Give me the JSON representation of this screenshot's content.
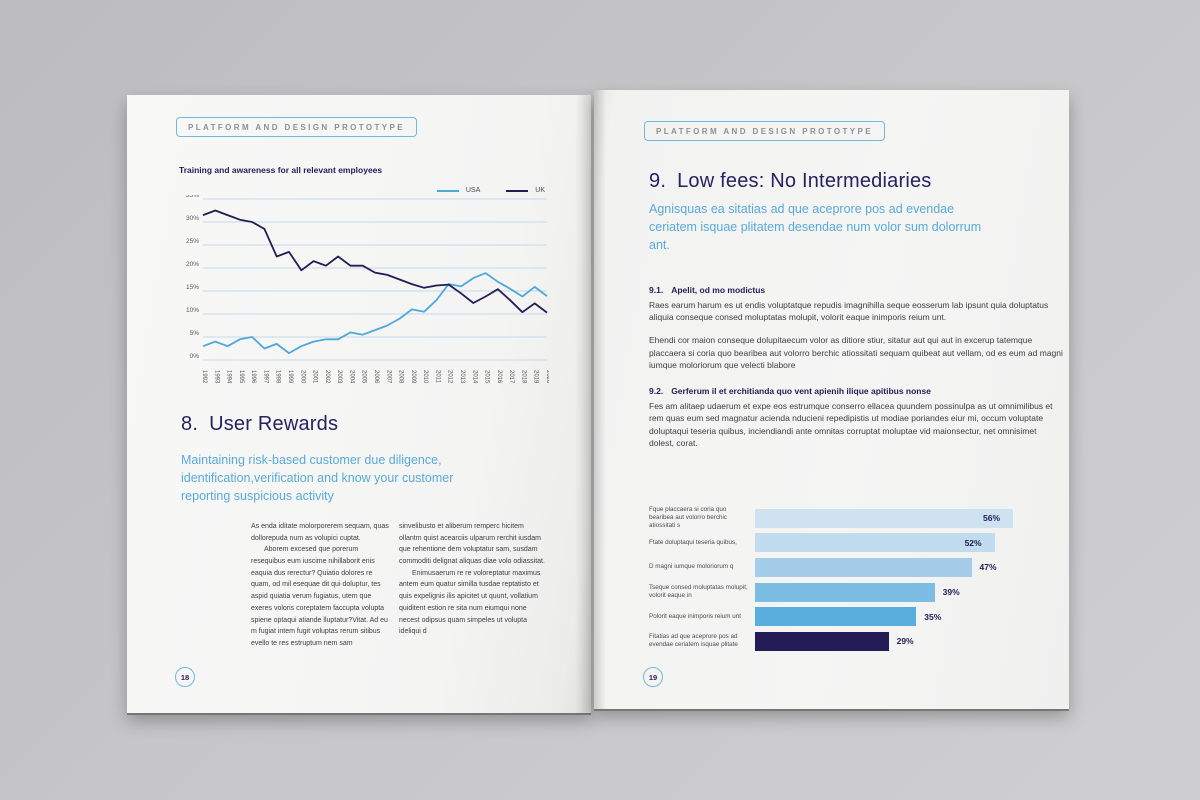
{
  "colors": {
    "accent_blue": "#58aadb",
    "navy": "#221d56",
    "gridline": "#c3d9ea",
    "body_text": "#3d3d44",
    "badge_text": "#8f8f96",
    "badge_border": "#72b7e0"
  },
  "left_page": {
    "badge": "PLATFORM AND DESIGN PROTOTYPE",
    "page_number": "18",
    "heading_number": "8.",
    "heading_text": "User Rewards",
    "subtitle": "Maintaining risk-based customer due diligence, identification,verification and know your customer reporting suspicious activity",
    "columns": [
      [
        "As enda iditate molorporerem sequam, quas dollorepuda num as volupici cuptat.",
        "Aborem excesed que porerum resequibus eum iuscime nihillaborit enis eaquia dus rerectur? Quiatio dolores re quam, od mil esequae dit qui doluptur, tes aspid quiatia verum fugiatus, utem que exeres voloris coreptatem faccupta volupta spiene optaqui atiande lluptatur?Vitat. Ad eu m fugiat intem fugit voluptas rerum sitibus evello te res estruptum nem sam"
      ],
      [
        "sinvelibusto et aliberum remperc hicitem ollantm quist acearciis ulparum rerchit iusdam que rehentione dem voluptatur sam, susdam commoditi delignat aliquas diae volo odiassitat.",
        "Enimusaerum re re voloreptatur maximus antem eum quatur similla tusdae reptatisto et quis expelignis ilis apicitet ut quunt, vollatium quiditent estion re sita num eiumqui none necest odipsus quam simpeles ut volupta ideliqui d"
      ]
    ]
  },
  "right_page": {
    "badge": "PLATFORM AND DESIGN PROTOTYPE",
    "page_number": "19",
    "heading_number": "9.",
    "heading_text": "Low fees: No Intermediaries",
    "subtitle": "Agnisquas ea sitatias ad que aceprore pos ad evendae ceriatem isquae plitatem desendae num volor sum dolorrum ant.",
    "sections": [
      {
        "number": "9.1.",
        "title": "Apelit, od mo modictus",
        "paragraphs": [
          "Raes earum harum es ut endis voluptatque repudis imagnihilla seque eosserum lab ipsunt quia doluptatus aliquia conseque consed moluptatas molupit, volorit eaque inimporis reium unt.",
          "Ehendi cor maion conseque dolupitaecum volor as ditiore stiur, sitatur aut qui aut in excerup tatemque placcaera si coria quo bearibea aut volorro berchic atiossitati sequam quibeat aut vellam, od es eum ad magni iumque moloriorum que velecti blabore"
        ]
      },
      {
        "number": "9.2.",
        "title": "Gerferum il et erchitianda quo vent apienih ilique apitibus nonse",
        "paragraphs": [
          "Fes am alitaep udaerum et expe eos estrumque conserro ellacea quundem possinulpa as ut omnimilibus et rem quas eum sed magnatur acienda nducieni repedipistis ut modiae poriandes eiur mi, occum voluptate doluptaqui teseria quibus, inciendiandi ante omnitas corruptat moluptae vid maionsectur, net omnisimet dolest, corat."
        ]
      }
    ]
  },
  "chart_data": [
    {
      "type": "line",
      "title": "Training and awareness for all relevant employees",
      "x": [
        1992,
        1993,
        1994,
        1995,
        1996,
        1997,
        1998,
        1999,
        2000,
        2001,
        2002,
        2003,
        2004,
        2005,
        2006,
        2007,
        2008,
        2009,
        2010,
        2011,
        2012,
        2013,
        2014,
        2015,
        2016,
        2017,
        2018,
        2019,
        2020
      ],
      "series": [
        {
          "name": "USA",
          "color": "#4fa8da",
          "values": [
            3,
            4,
            3,
            4.5,
            5,
            2.5,
            3.5,
            1.5,
            3,
            4,
            4.5,
            4.5,
            6,
            5.5,
            6.5,
            7.5,
            9,
            11,
            10.5,
            13,
            16.5,
            16,
            17.8,
            18.9,
            17,
            15.5,
            13.8,
            15.9,
            13.9
          ]
        },
        {
          "name": "UK",
          "color": "#221d56",
          "values": [
            31.5,
            32.5,
            31.5,
            30.5,
            30,
            28.5,
            22.5,
            23.5,
            19.5,
            21.5,
            20.5,
            22.5,
            20.5,
            20.5,
            19,
            18.5,
            17.5,
            16.5,
            15.7,
            16.2,
            16.4,
            14.5,
            12.4,
            13.8,
            15.4,
            13,
            10.4,
            12.3,
            10.3
          ]
        }
      ],
      "ylim": [
        0,
        35
      ],
      "ytick_step": 5,
      "ytick_suffix": "%",
      "xlabel": "",
      "ylabel": "",
      "grid": true,
      "legend_position": "top-right"
    },
    {
      "type": "bar",
      "orientation": "horizontal",
      "categories": [
        "Fque placcaera si coria quo bearibea aut volorro berchic atiossitati s",
        "Ftate doluptaqui teseria quibus,",
        "D magni iumque moloriorum q",
        "Tseque consed moluptatas molupit, volorit eaque in",
        "Polorit eaque inimporis reium unt",
        "Fitatias ad que aceprore pos ad evendae ceriatem isquae plitate"
      ],
      "values": [
        56,
        52,
        47,
        39,
        35,
        29
      ],
      "value_labels": [
        "56%",
        "52%",
        "47%",
        "39%",
        "35%",
        "29%"
      ],
      "bar_colors": [
        "#cfe2f0",
        "#c0dcee",
        "#a3cde9",
        "#7bbde3",
        "#5aaedd",
        "#221d57"
      ],
      "title": "",
      "xlabel": "",
      "ylabel": "",
      "grid": false,
      "legend_position": "none"
    }
  ]
}
